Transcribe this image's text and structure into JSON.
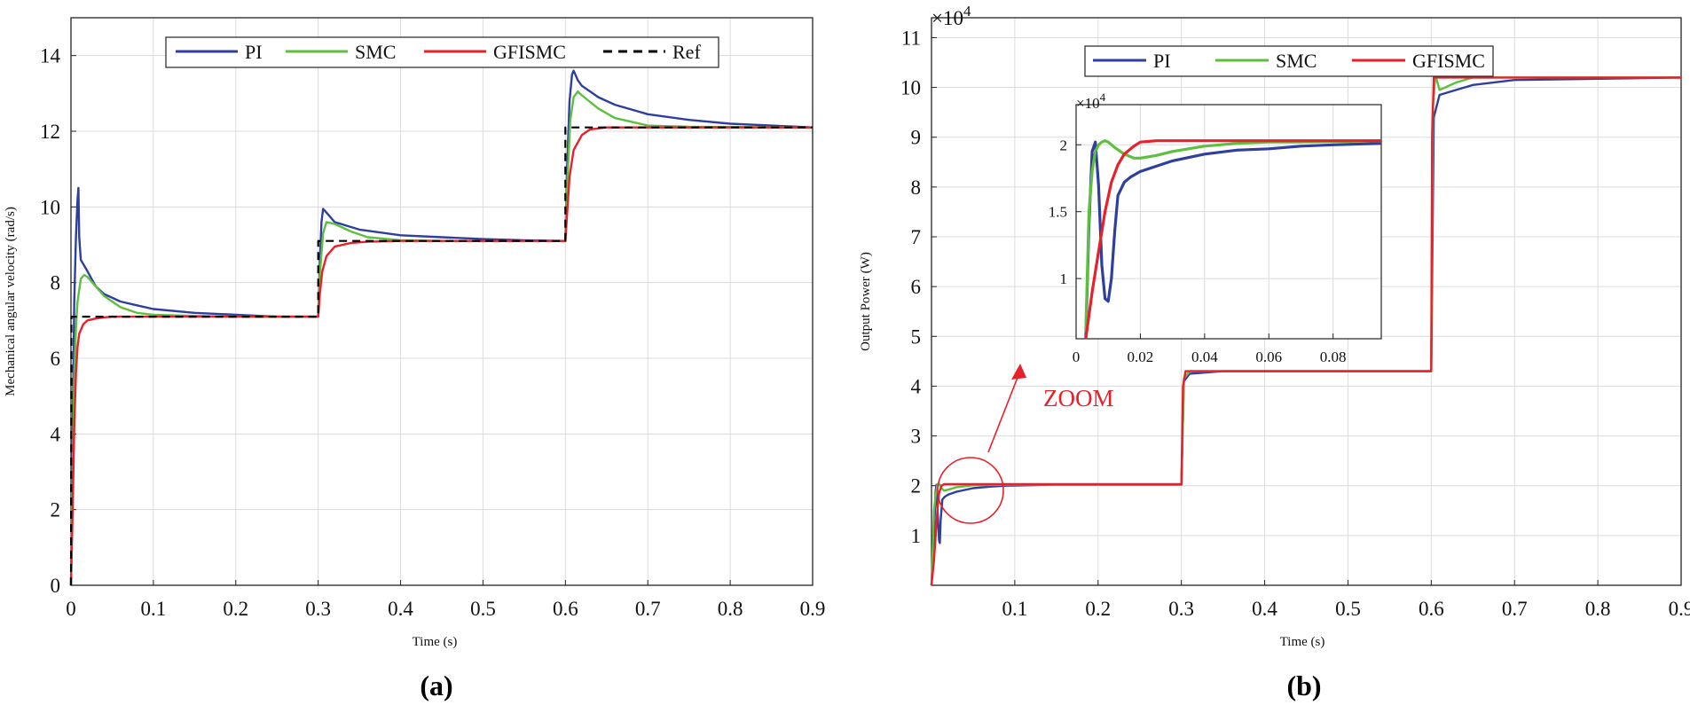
{
  "colors": {
    "PI": "#2e3f9e",
    "SMC": "#5ebf3f",
    "GFISMC": "#e8202a",
    "Ref": "#000000",
    "grid": "#dcdcdc",
    "annotation": "#e8202a"
  },
  "chart_data": [
    {
      "panel_label": "(a)",
      "type": "line",
      "xlabel": "Time (s)",
      "ylabel": "Mechanical angular velocity (rad/s)",
      "xlim": [
        0,
        0.9
      ],
      "ylim": [
        0,
        15
      ],
      "xticks": [
        0,
        0.1,
        0.2,
        0.3,
        0.4,
        0.5,
        0.6,
        0.7,
        0.8,
        0.9
      ],
      "xtick_labels": [
        "0",
        "0.1",
        "0.2",
        "0.3",
        "0.4",
        "0.5",
        "0.6",
        "0.7",
        "0.8",
        "0.9"
      ],
      "yticks": [
        0,
        2,
        4,
        6,
        8,
        10,
        12,
        14
      ],
      "ytick_labels": [
        "0",
        "2",
        "4",
        "6",
        "8",
        "10",
        "12",
        "14"
      ],
      "grid": true,
      "legend_position": "top",
      "legend": [
        "PI",
        "SMC",
        "GFISMC",
        "Ref"
      ],
      "series": [
        {
          "name": "PI",
          "style": "solid",
          "x": [
            0,
            0.002,
            0.004,
            0.006,
            0.008,
            0.009,
            0.01,
            0.012,
            0.016,
            0.02,
            0.03,
            0.04,
            0.06,
            0.08,
            0.1,
            0.15,
            0.2,
            0.25,
            0.3,
            0.302,
            0.304,
            0.306,
            0.31,
            0.32,
            0.35,
            0.4,
            0.45,
            0.5,
            0.55,
            0.6,
            0.602,
            0.605,
            0.608,
            0.61,
            0.615,
            0.62,
            0.64,
            0.66,
            0.7,
            0.75,
            0.8,
            0.85,
            0.9
          ],
          "y": [
            0,
            4.0,
            7.5,
            9.2,
            10.2,
            10.5,
            9.2,
            8.6,
            8.45,
            8.3,
            7.9,
            7.7,
            7.5,
            7.4,
            7.3,
            7.2,
            7.15,
            7.1,
            7.1,
            8.5,
            9.6,
            9.95,
            9.85,
            9.6,
            9.4,
            9.25,
            9.2,
            9.15,
            9.12,
            9.1,
            11.0,
            12.8,
            13.5,
            13.6,
            13.35,
            13.2,
            12.9,
            12.7,
            12.45,
            12.3,
            12.2,
            12.15,
            12.1
          ]
        },
        {
          "name": "SMC",
          "style": "solid",
          "x": [
            0,
            0.002,
            0.004,
            0.006,
            0.008,
            0.012,
            0.016,
            0.02,
            0.03,
            0.04,
            0.06,
            0.08,
            0.1,
            0.15,
            0.2,
            0.3,
            0.302,
            0.306,
            0.31,
            0.32,
            0.34,
            0.36,
            0.4,
            0.45,
            0.5,
            0.6,
            0.602,
            0.606,
            0.61,
            0.615,
            0.62,
            0.64,
            0.66,
            0.7,
            0.75,
            0.9
          ],
          "y": [
            0,
            3.0,
            5.5,
            6.8,
            7.5,
            8.1,
            8.2,
            8.15,
            7.9,
            7.65,
            7.35,
            7.2,
            7.15,
            7.12,
            7.1,
            7.1,
            8.2,
            9.3,
            9.6,
            9.55,
            9.35,
            9.2,
            9.12,
            9.1,
            9.1,
            9.1,
            10.5,
            12.3,
            12.9,
            13.05,
            12.95,
            12.6,
            12.35,
            12.15,
            12.12,
            12.1
          ]
        },
        {
          "name": "GFISMC",
          "style": "solid",
          "x": [
            0,
            0.002,
            0.004,
            0.006,
            0.008,
            0.01,
            0.015,
            0.02,
            0.03,
            0.04,
            0.05,
            0.1,
            0.2,
            0.3,
            0.302,
            0.305,
            0.31,
            0.32,
            0.34,
            0.36,
            0.4,
            0.5,
            0.6,
            0.602,
            0.605,
            0.61,
            0.62,
            0.63,
            0.65,
            0.7,
            0.8,
            0.9
          ],
          "y": [
            0,
            2.0,
            4.2,
            5.6,
            6.3,
            6.65,
            6.9,
            7.0,
            7.05,
            7.08,
            7.1,
            7.1,
            7.1,
            7.1,
            7.7,
            8.3,
            8.7,
            8.95,
            9.05,
            9.08,
            9.1,
            9.1,
            9.1,
            9.8,
            10.8,
            11.5,
            11.9,
            12.05,
            12.1,
            12.1,
            12.1,
            12.1
          ]
        },
        {
          "name": "Ref",
          "style": "dashed",
          "x": [
            0,
            0.0005,
            0.3,
            0.3,
            0.6,
            0.6,
            0.9
          ],
          "y": [
            0,
            7.1,
            7.1,
            9.1,
            9.1,
            12.1,
            12.1
          ]
        }
      ]
    },
    {
      "panel_label": "(b)",
      "type": "line",
      "xlabel": "Time (s)",
      "ylabel": "Output Power (W)",
      "exponent": "×10",
      "exponent_power": "4",
      "xlim": [
        0,
        0.9
      ],
      "ylim": [
        0,
        11.4
      ],
      "xticks": [
        0.1,
        0.2,
        0.3,
        0.4,
        0.5,
        0.6,
        0.7,
        0.8,
        0.9
      ],
      "xtick_labels": [
        "0.1",
        "0.2",
        "0.3",
        "0.4",
        "0.5",
        "0.6",
        "0.7",
        "0.8",
        "0.9"
      ],
      "yticks": [
        1,
        2,
        3,
        4,
        5,
        6,
        7,
        8,
        9,
        10,
        11
      ],
      "ytick_labels": [
        "1",
        "2",
        "3",
        "4",
        "5",
        "6",
        "7",
        "8",
        "9",
        "10",
        "11"
      ],
      "grid": true,
      "legend_position": "top",
      "legend": [
        "PI",
        "SMC",
        "GFISMC"
      ],
      "annotation": "ZOOM",
      "series": [
        {
          "name": "PI",
          "style": "solid",
          "x": [
            0,
            0.003,
            0.005,
            0.006,
            0.007,
            0.009,
            0.01,
            0.011,
            0.013,
            0.016,
            0.02,
            0.03,
            0.05,
            0.07,
            0.09,
            0.15,
            0.3,
            0.303,
            0.31,
            0.35,
            0.6,
            0.603,
            0.61,
            0.65,
            0.7,
            0.9
          ],
          "y": [
            0,
            1.0,
            1.9,
            2.02,
            1.6,
            0.9,
            0.85,
            1.3,
            1.72,
            1.78,
            1.82,
            1.88,
            1.95,
            1.98,
            2.0,
            2.02,
            2.02,
            4.1,
            4.25,
            4.3,
            4.3,
            9.4,
            9.85,
            10.05,
            10.15,
            10.2
          ]
        },
        {
          "name": "SMC",
          "style": "solid",
          "x": [
            0,
            0.003,
            0.005,
            0.007,
            0.009,
            0.012,
            0.015,
            0.02,
            0.03,
            0.05,
            0.1,
            0.3,
            0.303,
            0.31,
            0.35,
            0.6,
            0.602,
            0.605,
            0.61,
            0.63,
            0.65,
            0.9
          ],
          "y": [
            0,
            1.5,
            1.8,
            2.03,
            2.04,
            1.95,
            1.9,
            1.92,
            1.97,
            2.01,
            2.02,
            2.02,
            4.15,
            4.3,
            4.3,
            4.3,
            9.6,
            10.25,
            9.95,
            10.1,
            10.2,
            10.2
          ]
        },
        {
          "name": "GFISMC",
          "style": "solid",
          "x": [
            0,
            0.003,
            0.005,
            0.007,
            0.009,
            0.012,
            0.015,
            0.02,
            0.05,
            0.1,
            0.3,
            0.302,
            0.305,
            0.31,
            0.35,
            0.6,
            0.601,
            0.603,
            0.61,
            0.9
          ],
          "y": [
            0,
            0.5,
            1.0,
            1.5,
            1.85,
            2.0,
            2.03,
            2.03,
            2.03,
            2.03,
            2.03,
            4.0,
            4.3,
            4.3,
            4.3,
            4.3,
            9.0,
            10.2,
            10.2,
            10.2
          ]
        }
      ]
    },
    {
      "panel_label": "inset",
      "type": "line",
      "exponent": "×10",
      "exponent_power": "4",
      "xlim": [
        0,
        0.095
      ],
      "ylim": [
        0.55,
        2.3
      ],
      "xticks": [
        0,
        0.02,
        0.04,
        0.06,
        0.08
      ],
      "xtick_labels": [
        "0",
        "0.02",
        "0.04",
        "0.06",
        "0.08"
      ],
      "yticks": [
        1,
        1.5,
        2
      ],
      "ytick_labels": [
        "1",
        "1.5",
        "2"
      ],
      "grid": true,
      "series": [
        {
          "name": "PI",
          "style": "solid",
          "x": [
            0.003,
            0.004,
            0.005,
            0.006,
            0.007,
            0.008,
            0.009,
            0.01,
            0.011,
            0.012,
            0.013,
            0.015,
            0.017,
            0.02,
            0.025,
            0.03,
            0.04,
            0.05,
            0.06,
            0.07,
            0.08,
            0.095
          ],
          "y": [
            0.55,
            1.4,
            1.95,
            2.02,
            1.7,
            1.1,
            0.85,
            0.83,
            1.0,
            1.35,
            1.62,
            1.72,
            1.76,
            1.8,
            1.84,
            1.88,
            1.93,
            1.96,
            1.97,
            1.99,
            2.0,
            2.01
          ]
        },
        {
          "name": "SMC",
          "style": "solid",
          "x": [
            0.003,
            0.004,
            0.005,
            0.006,
            0.007,
            0.008,
            0.009,
            0.01,
            0.012,
            0.015,
            0.018,
            0.02,
            0.025,
            0.03,
            0.04,
            0.05,
            0.06,
            0.07,
            0.095
          ],
          "y": [
            0.6,
            1.5,
            1.8,
            1.95,
            2.0,
            2.02,
            2.03,
            2.02,
            1.98,
            1.93,
            1.9,
            1.9,
            1.92,
            1.95,
            1.99,
            2.01,
            2.02,
            2.02,
            2.03
          ]
        },
        {
          "name": "GFISMC",
          "style": "solid",
          "x": [
            0.003,
            0.005,
            0.007,
            0.009,
            0.011,
            0.013,
            0.015,
            0.018,
            0.02,
            0.025,
            0.03,
            0.05,
            0.07,
            0.095
          ],
          "y": [
            0.55,
            0.9,
            1.2,
            1.5,
            1.72,
            1.85,
            1.93,
            1.99,
            2.02,
            2.03,
            2.03,
            2.03,
            2.03,
            2.03
          ]
        }
      ]
    }
  ]
}
